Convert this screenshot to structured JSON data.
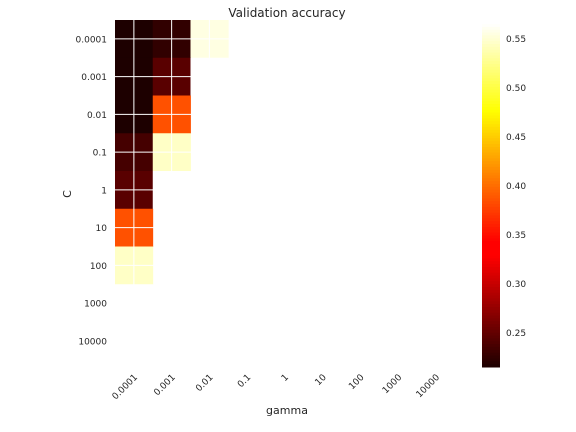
{
  "chart_data": {
    "type": "heatmap",
    "title": "Validation accuracy",
    "xlabel": "gamma",
    "ylabel": "C",
    "x_categories": [
      "0.0001",
      "0.001",
      "0.01",
      "0.1",
      "1",
      "10",
      "100",
      "1000",
      "10000"
    ],
    "y_categories": [
      "0.0001",
      "0.001",
      "0.01",
      "0.1",
      "1",
      "10",
      "100",
      "1000",
      "10000"
    ],
    "values": [
      [
        0.215,
        0.225,
        0.555,
        null,
        null,
        null,
        null,
        null,
        null
      ],
      [
        0.215,
        0.245,
        0.565,
        null,
        null,
        null,
        null,
        null,
        null
      ],
      [
        0.215,
        0.385,
        null,
        null,
        null,
        null,
        null,
        null,
        null
      ],
      [
        0.235,
        0.545,
        null,
        null,
        null,
        null,
        null,
        null,
        null
      ],
      [
        0.245,
        0.565,
        null,
        null,
        null,
        null,
        null,
        null,
        null
      ],
      [
        0.385,
        null,
        null,
        null,
        null,
        null,
        null,
        null,
        null
      ],
      [
        0.545,
        null,
        null,
        null,
        null,
        null,
        null,
        null,
        null
      ],
      [
        0.565,
        null,
        null,
        null,
        null,
        null,
        null,
        null,
        null
      ],
      [
        null,
        null,
        null,
        null,
        null,
        null,
        null,
        null,
        null
      ]
    ],
    "colormap": "hot",
    "vmin": 0.215,
    "vmax": 0.565,
    "colorbar_ticks": [
      "0.25",
      "0.30",
      "0.35",
      "0.40",
      "0.45",
      "0.50",
      "0.55"
    ],
    "grid": true
  }
}
